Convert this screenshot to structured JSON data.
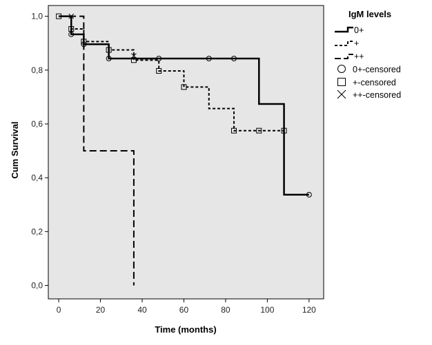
{
  "chart_data": {
    "type": "line",
    "step": true,
    "xlabel": "Time (months)",
    "ylabel": "Cum Survival",
    "xlim": [
      -5,
      127
    ],
    "ylim": [
      -0.05,
      1.04
    ],
    "xticks": [
      "0",
      "20",
      "40",
      "60",
      "80",
      "100",
      "120"
    ],
    "yticks": [
      "0,0",
      "0,2",
      "0,4",
      "0,6",
      "0,8",
      "1,0"
    ],
    "legend_title": "IgM levels",
    "legend_placement": "right",
    "legend": [
      "0+",
      "+",
      "++",
      "0+-censored",
      "+-censored",
      "++-censored"
    ],
    "plot_background": "#e6e6e6",
    "series": [
      {
        "name": "0+",
        "style": "solid",
        "steps": [
          [
            0,
            1.0
          ],
          [
            6,
            0.933
          ],
          [
            12,
            0.896
          ],
          [
            24,
            0.843
          ],
          [
            96,
            0.674
          ],
          [
            108,
            0.337
          ],
          [
            120,
            0.337
          ]
        ],
        "censored": [
          [
            6,
            0.933
          ],
          [
            12,
            0.896
          ],
          [
            24,
            0.843
          ],
          [
            48,
            0.843
          ],
          [
            72,
            0.843
          ],
          [
            84,
            0.843
          ],
          [
            120,
            0.337
          ]
        ]
      },
      {
        "name": "+",
        "style": "dotted",
        "steps": [
          [
            0,
            1.0
          ],
          [
            6,
            0.953
          ],
          [
            12,
            0.906
          ],
          [
            24,
            0.875
          ],
          [
            36,
            0.837
          ],
          [
            48,
            0.797
          ],
          [
            60,
            0.737
          ],
          [
            72,
            0.657
          ],
          [
            84,
            0.575
          ],
          [
            108,
            0.575
          ]
        ],
        "censored": [
          [
            0,
            1.0
          ],
          [
            6,
            0.953
          ],
          [
            12,
            0.906
          ],
          [
            24,
            0.875
          ],
          [
            36,
            0.837
          ],
          [
            48,
            0.797
          ],
          [
            60,
            0.737
          ],
          [
            84,
            0.575
          ],
          [
            96,
            0.575
          ],
          [
            108,
            0.575
          ]
        ]
      },
      {
        "name": "++",
        "style": "dashed",
        "steps": [
          [
            0,
            1.0
          ],
          [
            12,
            0.5
          ],
          [
            36,
            0.0
          ]
        ],
        "censored": [
          [
            6,
            1.0
          ],
          [
            36,
            0.853
          ]
        ]
      }
    ]
  }
}
